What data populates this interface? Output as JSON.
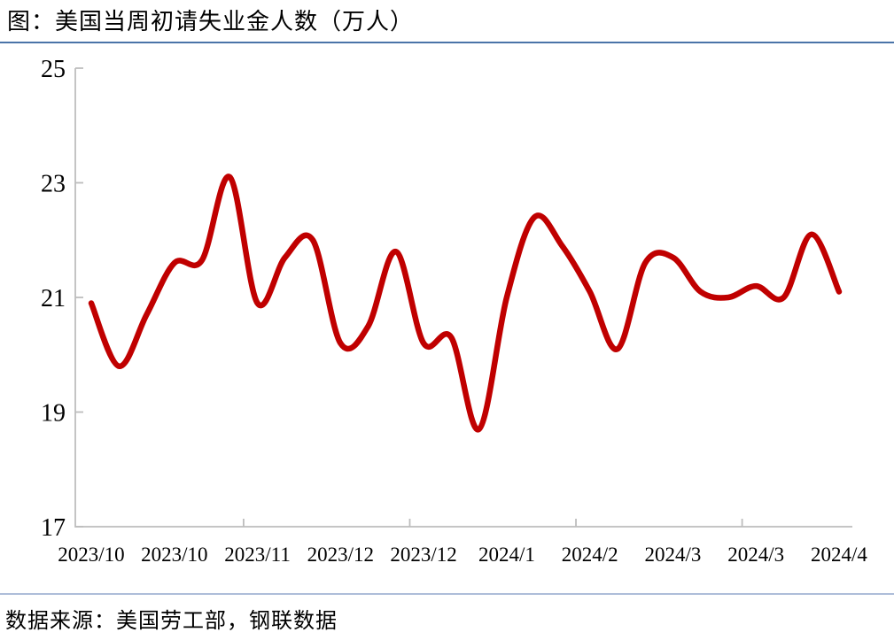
{
  "title": "图：美国当周初请失业金人数（万人）",
  "source_note": "数据来源：美国劳工部，钢联数据",
  "colors": {
    "line": "#c00000",
    "axis": "#bdbdbd",
    "tick_text": "#000000",
    "title_divider": "#4a74a8",
    "source_divider": "#aebdd9"
  },
  "chart_data": {
    "type": "line",
    "title": "图：美国当周初请失业金人数（万人）",
    "ylabel": "万人",
    "xlabel": "",
    "ylim": [
      17,
      25
    ],
    "y_ticks": [
      25,
      23,
      21,
      19,
      17
    ],
    "grid": false,
    "legend_position": "none",
    "x_tick_labels": [
      "2023/10",
      "2023/10",
      "2023/11",
      "2023/12",
      "2023/12",
      "2024/1",
      "2024/2",
      "2024/3",
      "2024/3",
      "2024/4"
    ],
    "label_every_n_points": 3,
    "series": [
      {
        "name": "美国当周初请失业金人数（万人）",
        "values": [
          20.9,
          19.8,
          20.7,
          21.6,
          21.65,
          23.1,
          20.9,
          21.7,
          22.0,
          20.2,
          20.5,
          21.8,
          20.2,
          20.3,
          18.7,
          21.0,
          22.4,
          21.9,
          21.1,
          20.1,
          21.6,
          21.7,
          21.1,
          21.0,
          21.2,
          21.0,
          22.1,
          21.1
        ]
      }
    ]
  }
}
